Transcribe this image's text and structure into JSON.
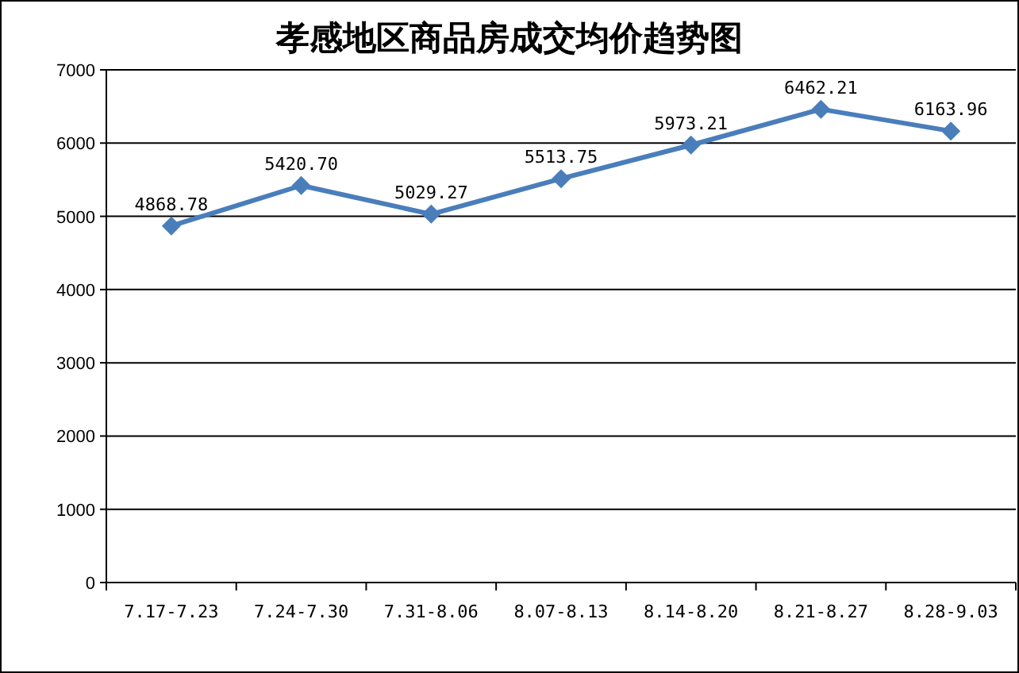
{
  "chart_data": {
    "type": "line",
    "title": "孝感地区商品房成交均价趋势图",
    "categories": [
      "7.17-7.23",
      "7.24-7.30",
      "7.31-8.06",
      "8.07-8.13",
      "8.14-8.20",
      "8.21-8.27",
      "8.28-9.03"
    ],
    "values": [
      4868.78,
      5420.7,
      5029.27,
      5513.75,
      5973.21,
      6462.21,
      6163.96
    ],
    "value_labels": [
      "4868.78",
      "5420.70",
      "5029.27",
      "5513.75",
      "5973.21",
      "6462.21",
      "6163.96"
    ],
    "color": "#4a7ebb",
    "marker": "diamond",
    "line_style": "solid",
    "ylim": [
      0,
      7000
    ],
    "yticks": [
      0,
      1000,
      2000,
      3000,
      4000,
      5000,
      6000,
      7000
    ],
    "grid": "y"
  }
}
